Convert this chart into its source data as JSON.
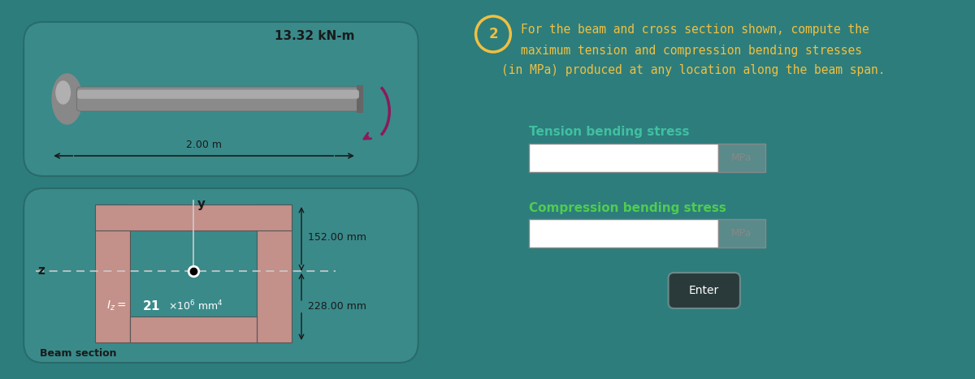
{
  "bg_color": "#2d7d7d",
  "panel_color": "#3a8a8a",
  "panel_edge_color": "#2a6a6a",
  "beam_color": "#9a9a9a",
  "section_color": "#c4908a",
  "moment_color": "#8b1a5a",
  "title_color": "#f0c040",
  "label_color_teal": "#40c0a0",
  "text_color_dark": "#1a1a1a",
  "text_color_white": "#ffffff",
  "moment_label": "13.32 kN-m",
  "length_label": "2.00 m",
  "dim1_label": "152.00 mm",
  "dim2_label": "228.00 mm",
  "Iz_label_base": "21",
  "Iz_label_exp": "6",
  "axis_y": "y",
  "axis_z": "z",
  "question_number": "2",
  "question_text_line1": "For the beam and cross section shown, compute the",
  "question_text_line2": "maximum tension and compression bending stresses",
  "question_text_line3": "(in MPa) produced at any location along the beam span.",
  "tension_label": "Tension bending stress",
  "compression_label": "Compression bending stress",
  "unit_label": "MPa",
  "enter_label": "Enter",
  "beam_section_label": "Beam section"
}
